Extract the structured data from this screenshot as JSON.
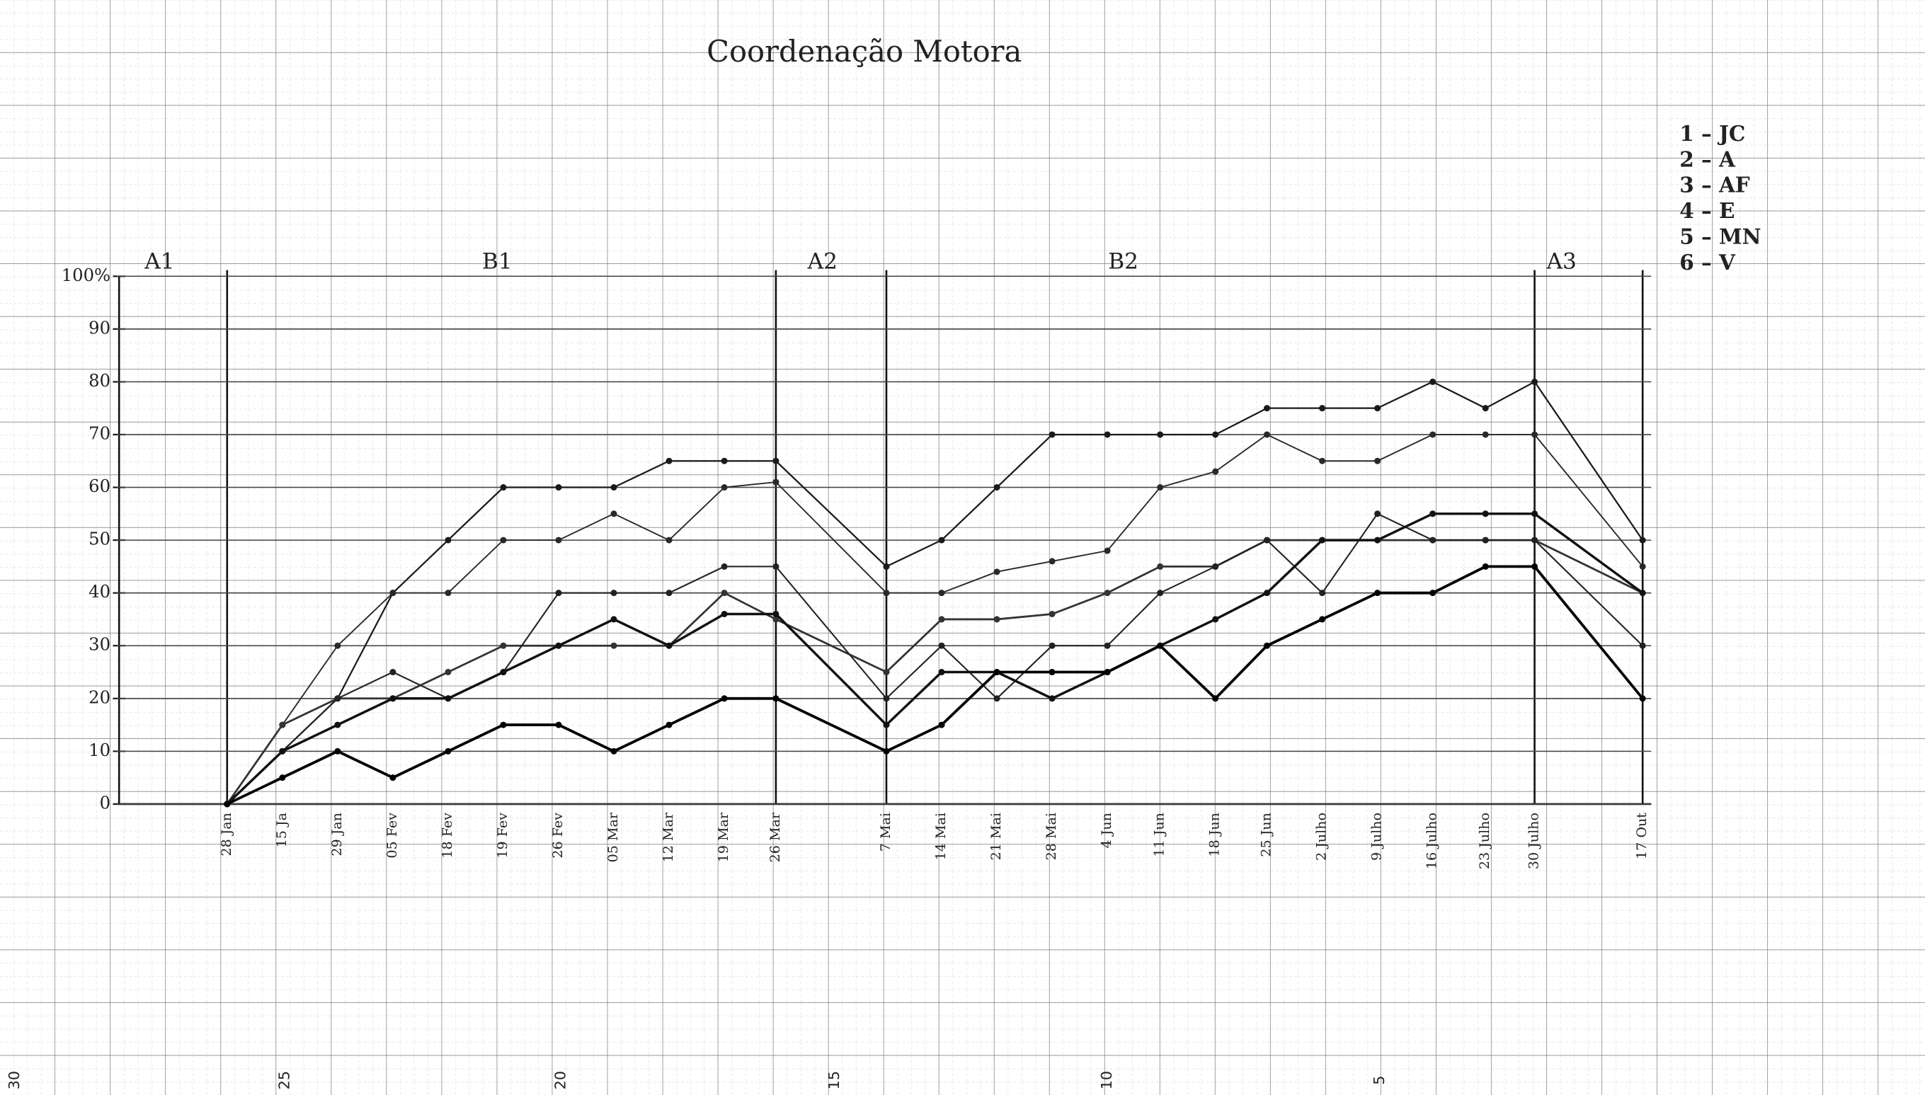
{
  "chart_data": {
    "type": "line",
    "title": "Coordenação Motora",
    "categories": [
      "28 Jan",
      "15 Ja",
      "29 Jan",
      "05 Fev",
      "18 Fev",
      "19 Fev",
      "26 Fev",
      "05 Mar",
      "12 Mar",
      "19 Mar",
      "26 Mar",
      "7 Mai",
      "14 Mai",
      "21 Mai",
      "28 Mai",
      "4 Jun",
      "11 Jun",
      "18 Jun",
      "25 Jun",
      "2 Julho",
      "9 Julho",
      "16 Julho",
      "23 Julho",
      "30 Julho",
      "17 Out"
    ],
    "series": [
      {
        "name": "1 – JC",
        "color": "#1a1a1a",
        "values": [
          0,
          10,
          20,
          40,
          50,
          60,
          60,
          60,
          65,
          65,
          65,
          45,
          50,
          60,
          70,
          70,
          70,
          70,
          75,
          75,
          75,
          80,
          75,
          80,
          50
        ]
      },
      {
        "name": "2 – A",
        "color": "#2a2a2a",
        "values": [
          0,
          15,
          30,
          40,
          40,
          50,
          50,
          55,
          50,
          60,
          61,
          40,
          40,
          44,
          46,
          48,
          60,
          63,
          70,
          65,
          65,
          70,
          70,
          70,
          45
        ]
      },
      {
        "name": "3 – AF",
        "color": "#333333",
        "values": [
          0,
          15,
          20,
          20,
          25,
          30,
          30,
          30,
          30,
          40,
          35,
          25,
          35,
          35,
          36,
          40,
          45,
          45,
          50,
          50,
          50,
          50,
          50,
          50,
          40
        ]
      },
      {
        "name": "4 – E",
        "color": "#222222",
        "values": [
          0,
          10,
          20,
          25,
          20,
          25,
          40,
          40,
          40,
          45,
          45,
          20,
          30,
          20,
          30,
          30,
          40,
          45,
          50,
          40,
          55,
          50,
          50,
          50,
          30
        ]
      },
      {
        "name": "5 – MN",
        "color": "#111111",
        "values": [
          0,
          10,
          15,
          20,
          20,
          25,
          30,
          35,
          30,
          36,
          36,
          15,
          25,
          25,
          20,
          25,
          30,
          35,
          40,
          50,
          50,
          55,
          55,
          55,
          40
        ]
      },
      {
        "name": "6 – V",
        "color": "#000000",
        "values": [
          0,
          5,
          10,
          5,
          10,
          15,
          15,
          10,
          15,
          20,
          20,
          10,
          15,
          25,
          25,
          25,
          30,
          20,
          30,
          35,
          40,
          40,
          45,
          45,
          20
        ]
      }
    ],
    "ylim": [
      0,
      100
    ],
    "yticks": [
      0,
      10,
      20,
      30,
      40,
      50,
      60,
      70,
      80,
      90,
      {
        "value": 100,
        "label": "100%"
      }
    ],
    "section_labels": [
      "A1",
      "B1",
      "A2",
      "B2",
      "A3"
    ],
    "paper_ruler": [
      "30",
      "25",
      "20",
      "15",
      "10",
      "5"
    ],
    "grid": true
  }
}
